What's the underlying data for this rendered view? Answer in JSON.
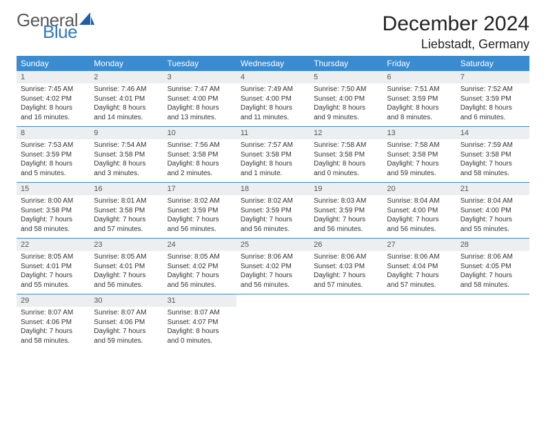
{
  "brand": {
    "word1": "General",
    "word2": "Blue",
    "gray": "#5a5a5a",
    "blue": "#2f78c2",
    "sail_color": "#1d5fa8"
  },
  "title": "December 2024",
  "location": "Liebstadt, Germany",
  "colors": {
    "header_bg": "#3b8bd0",
    "header_text": "#ffffff",
    "daynum_bg": "#eceeef",
    "daynum_text": "#555555",
    "cell_text": "#333333",
    "rule": "#3b8bd0"
  },
  "day_names": [
    "Sunday",
    "Monday",
    "Tuesday",
    "Wednesday",
    "Thursday",
    "Friday",
    "Saturday"
  ],
  "weeks": [
    [
      {
        "n": "1",
        "sr": "7:45 AM",
        "ss": "4:02 PM",
        "dl": "8 hours and 16 minutes."
      },
      {
        "n": "2",
        "sr": "7:46 AM",
        "ss": "4:01 PM",
        "dl": "8 hours and 14 minutes."
      },
      {
        "n": "3",
        "sr": "7:47 AM",
        "ss": "4:00 PM",
        "dl": "8 hours and 13 minutes."
      },
      {
        "n": "4",
        "sr": "7:49 AM",
        "ss": "4:00 PM",
        "dl": "8 hours and 11 minutes."
      },
      {
        "n": "5",
        "sr": "7:50 AM",
        "ss": "4:00 PM",
        "dl": "8 hours and 9 minutes."
      },
      {
        "n": "6",
        "sr": "7:51 AM",
        "ss": "3:59 PM",
        "dl": "8 hours and 8 minutes."
      },
      {
        "n": "7",
        "sr": "7:52 AM",
        "ss": "3:59 PM",
        "dl": "8 hours and 6 minutes."
      }
    ],
    [
      {
        "n": "8",
        "sr": "7:53 AM",
        "ss": "3:59 PM",
        "dl": "8 hours and 5 minutes."
      },
      {
        "n": "9",
        "sr": "7:54 AM",
        "ss": "3:58 PM",
        "dl": "8 hours and 3 minutes."
      },
      {
        "n": "10",
        "sr": "7:56 AM",
        "ss": "3:58 PM",
        "dl": "8 hours and 2 minutes."
      },
      {
        "n": "11",
        "sr": "7:57 AM",
        "ss": "3:58 PM",
        "dl": "8 hours and 1 minute."
      },
      {
        "n": "12",
        "sr": "7:58 AM",
        "ss": "3:58 PM",
        "dl": "8 hours and 0 minutes."
      },
      {
        "n": "13",
        "sr": "7:58 AM",
        "ss": "3:58 PM",
        "dl": "7 hours and 59 minutes."
      },
      {
        "n": "14",
        "sr": "7:59 AM",
        "ss": "3:58 PM",
        "dl": "7 hours and 58 minutes."
      }
    ],
    [
      {
        "n": "15",
        "sr": "8:00 AM",
        "ss": "3:58 PM",
        "dl": "7 hours and 58 minutes."
      },
      {
        "n": "16",
        "sr": "8:01 AM",
        "ss": "3:58 PM",
        "dl": "7 hours and 57 minutes."
      },
      {
        "n": "17",
        "sr": "8:02 AM",
        "ss": "3:59 PM",
        "dl": "7 hours and 56 minutes."
      },
      {
        "n": "18",
        "sr": "8:02 AM",
        "ss": "3:59 PM",
        "dl": "7 hours and 56 minutes."
      },
      {
        "n": "19",
        "sr": "8:03 AM",
        "ss": "3:59 PM",
        "dl": "7 hours and 56 minutes."
      },
      {
        "n": "20",
        "sr": "8:04 AM",
        "ss": "4:00 PM",
        "dl": "7 hours and 56 minutes."
      },
      {
        "n": "21",
        "sr": "8:04 AM",
        "ss": "4:00 PM",
        "dl": "7 hours and 55 minutes."
      }
    ],
    [
      {
        "n": "22",
        "sr": "8:05 AM",
        "ss": "4:01 PM",
        "dl": "7 hours and 55 minutes."
      },
      {
        "n": "23",
        "sr": "8:05 AM",
        "ss": "4:01 PM",
        "dl": "7 hours and 56 minutes."
      },
      {
        "n": "24",
        "sr": "8:05 AM",
        "ss": "4:02 PM",
        "dl": "7 hours and 56 minutes."
      },
      {
        "n": "25",
        "sr": "8:06 AM",
        "ss": "4:02 PM",
        "dl": "7 hours and 56 minutes."
      },
      {
        "n": "26",
        "sr": "8:06 AM",
        "ss": "4:03 PM",
        "dl": "7 hours and 57 minutes."
      },
      {
        "n": "27",
        "sr": "8:06 AM",
        "ss": "4:04 PM",
        "dl": "7 hours and 57 minutes."
      },
      {
        "n": "28",
        "sr": "8:06 AM",
        "ss": "4:05 PM",
        "dl": "7 hours and 58 minutes."
      }
    ],
    [
      {
        "n": "29",
        "sr": "8:07 AM",
        "ss": "4:06 PM",
        "dl": "7 hours and 58 minutes."
      },
      {
        "n": "30",
        "sr": "8:07 AM",
        "ss": "4:06 PM",
        "dl": "7 hours and 59 minutes."
      },
      {
        "n": "31",
        "sr": "8:07 AM",
        "ss": "4:07 PM",
        "dl": "8 hours and 0 minutes."
      },
      null,
      null,
      null,
      null
    ]
  ],
  "labels": {
    "sunrise": "Sunrise:",
    "sunset": "Sunset:",
    "daylight": "Daylight:"
  }
}
